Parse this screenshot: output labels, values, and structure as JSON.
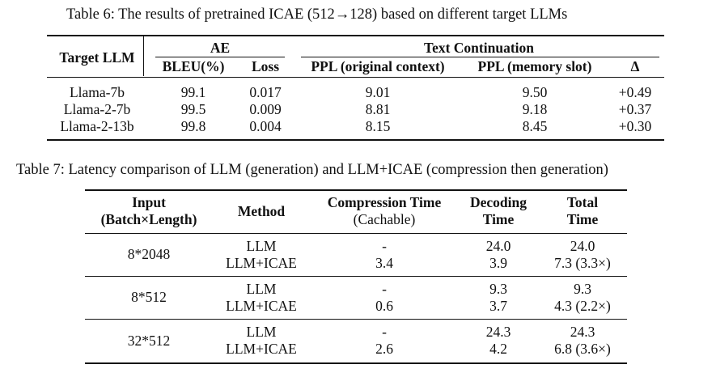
{
  "table6": {
    "caption": "Table 6: The results of pretrained ICAE (512→128) based on different target LLMs",
    "headers": {
      "target_llm": "Target LLM",
      "ae": "AE",
      "bleu": "BLEU(%)",
      "loss": "Loss",
      "text_continuation": "Text Continuation",
      "ppl_original": "PPL (original context)",
      "ppl_memory": "PPL (memory slot)",
      "delta": "Δ"
    },
    "rows": [
      {
        "model": "Llama-7b",
        "bleu": "99.1",
        "loss": "0.017",
        "ppl_orig": "9.01",
        "ppl_mem": "9.50",
        "delta": "+0.49"
      },
      {
        "model": "Llama-2-7b",
        "bleu": "99.5",
        "loss": "0.009",
        "ppl_orig": "8.81",
        "ppl_mem": "9.18",
        "delta": "+0.37"
      },
      {
        "model": "Llama-2-13b",
        "bleu": "99.8",
        "loss": "0.004",
        "ppl_orig": "8.15",
        "ppl_mem": "8.45",
        "delta": "+0.30"
      }
    ]
  },
  "table7": {
    "caption": "Table 7: Latency comparison of LLM (generation) and LLM+ICAE (compression then generation)",
    "headers": {
      "input_l1": "Input",
      "input_l2": "(Batch×Length)",
      "method": "Method",
      "comp_l1": "Compression Time",
      "comp_l2": "(Cachable)",
      "dec_l1": "Decoding",
      "dec_l2": "Time",
      "total_l1": "Total",
      "total_l2": "Time"
    },
    "groups": [
      {
        "input": "8*2048",
        "rows": [
          {
            "method": "LLM",
            "comp": "-",
            "dec": "24.0",
            "total": "24.0"
          },
          {
            "method": "LLM+ICAE",
            "comp": "3.4",
            "dec": "3.9",
            "total": "7.3 (3.3×)"
          }
        ]
      },
      {
        "input": "8*512",
        "rows": [
          {
            "method": "LLM",
            "comp": "-",
            "dec": "9.3",
            "total": "9.3"
          },
          {
            "method": "LLM+ICAE",
            "comp": "0.6",
            "dec": "3.7",
            "total": "4.3 (2.2×)"
          }
        ]
      },
      {
        "input": "32*512",
        "rows": [
          {
            "method": "LLM",
            "comp": "-",
            "dec": "24.3",
            "total": "24.3"
          },
          {
            "method": "LLM+ICAE",
            "comp": "2.6",
            "dec": "4.2",
            "total": "6.8 (3.6×)"
          }
        ]
      }
    ]
  }
}
